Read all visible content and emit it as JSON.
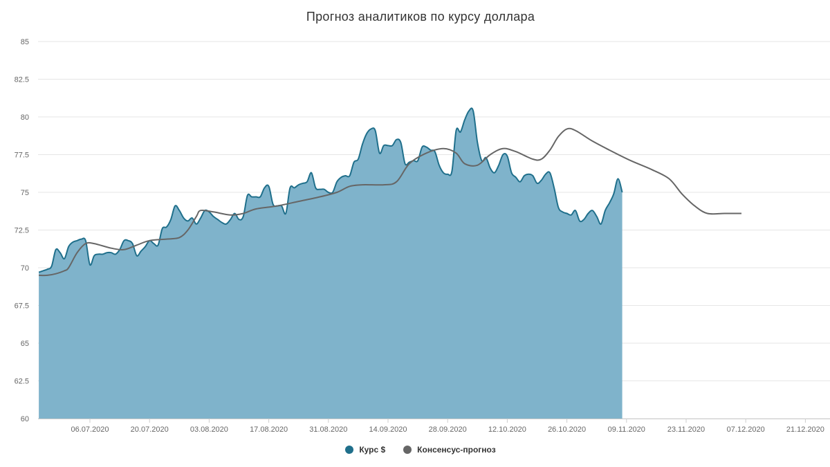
{
  "chart_data": {
    "type": "area",
    "title": "Прогноз аналитиков по курсу доллара",
    "xlabel": "",
    "ylabel": "",
    "ylim": [
      60,
      85
    ],
    "yticks": [
      60,
      62.5,
      65,
      67.5,
      70,
      72.5,
      75,
      77.5,
      80,
      82.5,
      85
    ],
    "ytick_labels": [
      "60",
      "62.5",
      "65",
      "67.5",
      "70",
      "72.5",
      "75",
      "77.5",
      "80",
      "82.5",
      "85"
    ],
    "xlim": [
      "2020-06-23",
      "2020-12-24"
    ],
    "xticks": [
      "2020-07-06",
      "2020-07-20",
      "2020-08-03",
      "2020-08-17",
      "2020-08-31",
      "2020-09-14",
      "2020-09-28",
      "2020-10-12",
      "2020-10-26",
      "2020-11-09",
      "2020-11-23",
      "2020-12-07",
      "2020-12-21"
    ],
    "xtick_labels": [
      "06.07.2020",
      "20.07.2020",
      "03.08.2020",
      "17.08.2020",
      "31.08.2020",
      "14.09.2020",
      "28.09.2020",
      "12.10.2020",
      "26.10.2020",
      "09.11.2020",
      "23.11.2020",
      "07.12.2020",
      "21.12.2020"
    ],
    "grid": true,
    "legend_position": "bottom",
    "series": [
      {
        "name": "Курс $",
        "type": "area",
        "color": "#1f6f8b",
        "fill": "#7fb3cb",
        "points": [
          [
            "2020-06-24",
            69.7
          ],
          [
            "2020-06-25",
            69.8
          ],
          [
            "2020-06-26",
            69.9
          ],
          [
            "2020-06-27",
            70.1
          ],
          [
            "2020-06-28",
            71.2
          ],
          [
            "2020-06-29",
            71.0
          ],
          [
            "2020-06-30",
            70.6
          ],
          [
            "2020-07-01",
            71.4
          ],
          [
            "2020-07-02",
            71.7
          ],
          [
            "2020-07-03",
            71.8
          ],
          [
            "2020-07-04",
            71.9
          ],
          [
            "2020-07-05",
            71.8
          ],
          [
            "2020-07-06",
            70.2
          ],
          [
            "2020-07-07",
            70.8
          ],
          [
            "2020-07-08",
            70.9
          ],
          [
            "2020-07-09",
            70.9
          ],
          [
            "2020-07-10",
            71.0
          ],
          [
            "2020-07-11",
            71.0
          ],
          [
            "2020-07-12",
            70.9
          ],
          [
            "2020-07-13",
            71.2
          ],
          [
            "2020-07-14",
            71.8
          ],
          [
            "2020-07-15",
            71.8
          ],
          [
            "2020-07-16",
            71.6
          ],
          [
            "2020-07-17",
            70.8
          ],
          [
            "2020-07-18",
            71.1
          ],
          [
            "2020-07-19",
            71.4
          ],
          [
            "2020-07-20",
            71.8
          ],
          [
            "2020-07-21",
            71.6
          ],
          [
            "2020-07-22",
            71.5
          ],
          [
            "2020-07-23",
            72.6
          ],
          [
            "2020-07-24",
            72.7
          ],
          [
            "2020-07-25",
            73.2
          ],
          [
            "2020-07-26",
            74.1
          ],
          [
            "2020-07-27",
            73.8
          ],
          [
            "2020-07-28",
            73.3
          ],
          [
            "2020-07-29",
            73.1
          ],
          [
            "2020-07-30",
            73.3
          ],
          [
            "2020-07-31",
            72.9
          ],
          [
            "2020-08-01",
            73.3
          ],
          [
            "2020-08-02",
            73.8
          ],
          [
            "2020-08-03",
            73.7
          ],
          [
            "2020-08-04",
            73.4
          ],
          [
            "2020-08-05",
            73.2
          ],
          [
            "2020-08-06",
            73.0
          ],
          [
            "2020-08-07",
            72.9
          ],
          [
            "2020-08-08",
            73.2
          ],
          [
            "2020-08-09",
            73.6
          ],
          [
            "2020-08-10",
            73.2
          ],
          [
            "2020-08-11",
            73.4
          ],
          [
            "2020-08-12",
            74.8
          ],
          [
            "2020-08-13",
            74.7
          ],
          [
            "2020-08-14",
            74.7
          ],
          [
            "2020-08-15",
            74.7
          ],
          [
            "2020-08-16",
            75.3
          ],
          [
            "2020-08-17",
            75.4
          ],
          [
            "2020-08-18",
            74.2
          ],
          [
            "2020-08-19",
            74.1
          ],
          [
            "2020-08-20",
            74.1
          ],
          [
            "2020-08-21",
            73.6
          ],
          [
            "2020-08-22",
            75.3
          ],
          [
            "2020-08-23",
            75.3
          ],
          [
            "2020-08-24",
            75.5
          ],
          [
            "2020-08-25",
            75.6
          ],
          [
            "2020-08-26",
            75.7
          ],
          [
            "2020-08-27",
            76.3
          ],
          [
            "2020-08-28",
            75.3
          ],
          [
            "2020-08-29",
            75.2
          ],
          [
            "2020-08-30",
            75.2
          ],
          [
            "2020-08-31",
            75.0
          ],
          [
            "2020-09-01",
            75.0
          ],
          [
            "2020-09-02",
            75.7
          ],
          [
            "2020-09-03",
            76.0
          ],
          [
            "2020-09-04",
            76.1
          ],
          [
            "2020-09-05",
            76.1
          ],
          [
            "2020-09-06",
            77.0
          ],
          [
            "2020-09-07",
            77.2
          ],
          [
            "2020-09-08",
            78.2
          ],
          [
            "2020-09-09",
            78.9
          ],
          [
            "2020-09-10",
            79.2
          ],
          [
            "2020-09-11",
            79.1
          ],
          [
            "2020-09-12",
            77.6
          ],
          [
            "2020-09-13",
            78.1
          ],
          [
            "2020-09-14",
            78.1
          ],
          [
            "2020-09-15",
            78.1
          ],
          [
            "2020-09-16",
            78.5
          ],
          [
            "2020-09-17",
            78.3
          ],
          [
            "2020-09-18",
            76.9
          ],
          [
            "2020-09-19",
            77.0
          ],
          [
            "2020-09-20",
            77.1
          ],
          [
            "2020-09-21",
            77.1
          ],
          [
            "2020-09-22",
            78.0
          ],
          [
            "2020-09-23",
            78.0
          ],
          [
            "2020-09-24",
            77.8
          ],
          [
            "2020-09-25",
            77.7
          ],
          [
            "2020-09-26",
            76.8
          ],
          [
            "2020-09-27",
            76.3
          ],
          [
            "2020-09-28",
            76.2
          ],
          [
            "2020-09-29",
            76.4
          ],
          [
            "2020-09-30",
            79.1
          ],
          [
            "2020-10-01",
            79.0
          ],
          [
            "2020-10-02",
            79.8
          ],
          [
            "2020-10-03",
            80.4
          ],
          [
            "2020-10-04",
            80.4
          ],
          [
            "2020-10-05",
            78.3
          ],
          [
            "2020-10-06",
            77.1
          ],
          [
            "2020-10-07",
            77.3
          ],
          [
            "2020-10-08",
            76.6
          ],
          [
            "2020-10-09",
            76.3
          ],
          [
            "2020-10-10",
            76.8
          ],
          [
            "2020-10-11",
            77.5
          ],
          [
            "2020-10-12",
            77.4
          ],
          [
            "2020-10-13",
            76.3
          ],
          [
            "2020-10-14",
            76.0
          ],
          [
            "2020-10-15",
            75.7
          ],
          [
            "2020-10-16",
            76.1
          ],
          [
            "2020-10-17",
            76.2
          ],
          [
            "2020-10-18",
            76.1
          ],
          [
            "2020-10-19",
            75.6
          ],
          [
            "2020-10-20",
            75.8
          ],
          [
            "2020-10-21",
            76.2
          ],
          [
            "2020-10-22",
            76.3
          ],
          [
            "2020-10-23",
            75.3
          ],
          [
            "2020-10-24",
            74.0
          ],
          [
            "2020-10-25",
            73.7
          ],
          [
            "2020-10-26",
            73.6
          ],
          [
            "2020-10-27",
            73.5
          ],
          [
            "2020-10-28",
            73.8
          ],
          [
            "2020-10-29",
            73.1
          ],
          [
            "2020-10-30",
            73.2
          ],
          [
            "2020-10-31",
            73.6
          ],
          [
            "2020-11-01",
            73.8
          ],
          [
            "2020-11-02",
            73.4
          ],
          [
            "2020-11-03",
            72.9
          ],
          [
            "2020-11-04",
            73.8
          ],
          [
            "2020-11-05",
            74.3
          ],
          [
            "2020-11-06",
            74.9
          ],
          [
            "2020-11-07",
            75.9
          ],
          [
            "2020-11-08",
            75.0
          ]
        ]
      },
      {
        "name": "Консенсус-прогноз",
        "type": "line",
        "color": "#666666",
        "points": [
          [
            "2020-06-24",
            69.5
          ],
          [
            "2020-06-26",
            69.5
          ],
          [
            "2020-06-28",
            69.6
          ],
          [
            "2020-06-30",
            69.8
          ],
          [
            "2020-07-01",
            70.0
          ],
          [
            "2020-07-03",
            71.0
          ],
          [
            "2020-07-05",
            71.6
          ],
          [
            "2020-07-07",
            71.6
          ],
          [
            "2020-07-11",
            71.3
          ],
          [
            "2020-07-14",
            71.2
          ],
          [
            "2020-07-17",
            71.5
          ],
          [
            "2020-07-20",
            71.8
          ],
          [
            "2020-07-24",
            71.9
          ],
          [
            "2020-07-27",
            72.0
          ],
          [
            "2020-07-29",
            72.5
          ],
          [
            "2020-07-31",
            73.4
          ],
          [
            "2020-08-01",
            73.8
          ],
          [
            "2020-08-04",
            73.7
          ],
          [
            "2020-08-08",
            73.5
          ],
          [
            "2020-08-11",
            73.6
          ],
          [
            "2020-08-14",
            73.9
          ],
          [
            "2020-08-19",
            74.1
          ],
          [
            "2020-08-24",
            74.4
          ],
          [
            "2020-08-29",
            74.7
          ],
          [
            "2020-09-02",
            75.0
          ],
          [
            "2020-09-05",
            75.4
          ],
          [
            "2020-09-08",
            75.5
          ],
          [
            "2020-09-13",
            75.5
          ],
          [
            "2020-09-16",
            75.7
          ],
          [
            "2020-09-19",
            76.9
          ],
          [
            "2020-09-23",
            77.6
          ],
          [
            "2020-09-27",
            77.9
          ],
          [
            "2020-09-30",
            77.6
          ],
          [
            "2020-10-02",
            76.9
          ],
          [
            "2020-10-05",
            76.8
          ],
          [
            "2020-10-08",
            77.5
          ],
          [
            "2020-10-11",
            77.9
          ],
          [
            "2020-10-14",
            77.7
          ],
          [
            "2020-10-18",
            77.2
          ],
          [
            "2020-10-20",
            77.2
          ],
          [
            "2020-10-22",
            77.8
          ],
          [
            "2020-10-24",
            78.7
          ],
          [
            "2020-10-26",
            79.2
          ],
          [
            "2020-10-28",
            79.1
          ],
          [
            "2020-11-01",
            78.4
          ],
          [
            "2020-11-05",
            77.8
          ],
          [
            "2020-11-10",
            77.1
          ],
          [
            "2020-11-15",
            76.5
          ],
          [
            "2020-11-19",
            75.9
          ],
          [
            "2020-11-22",
            74.9
          ],
          [
            "2020-11-25",
            74.1
          ],
          [
            "2020-11-28",
            73.6
          ],
          [
            "2020-12-02",
            73.6
          ],
          [
            "2020-12-06",
            73.6
          ]
        ]
      }
    ]
  }
}
